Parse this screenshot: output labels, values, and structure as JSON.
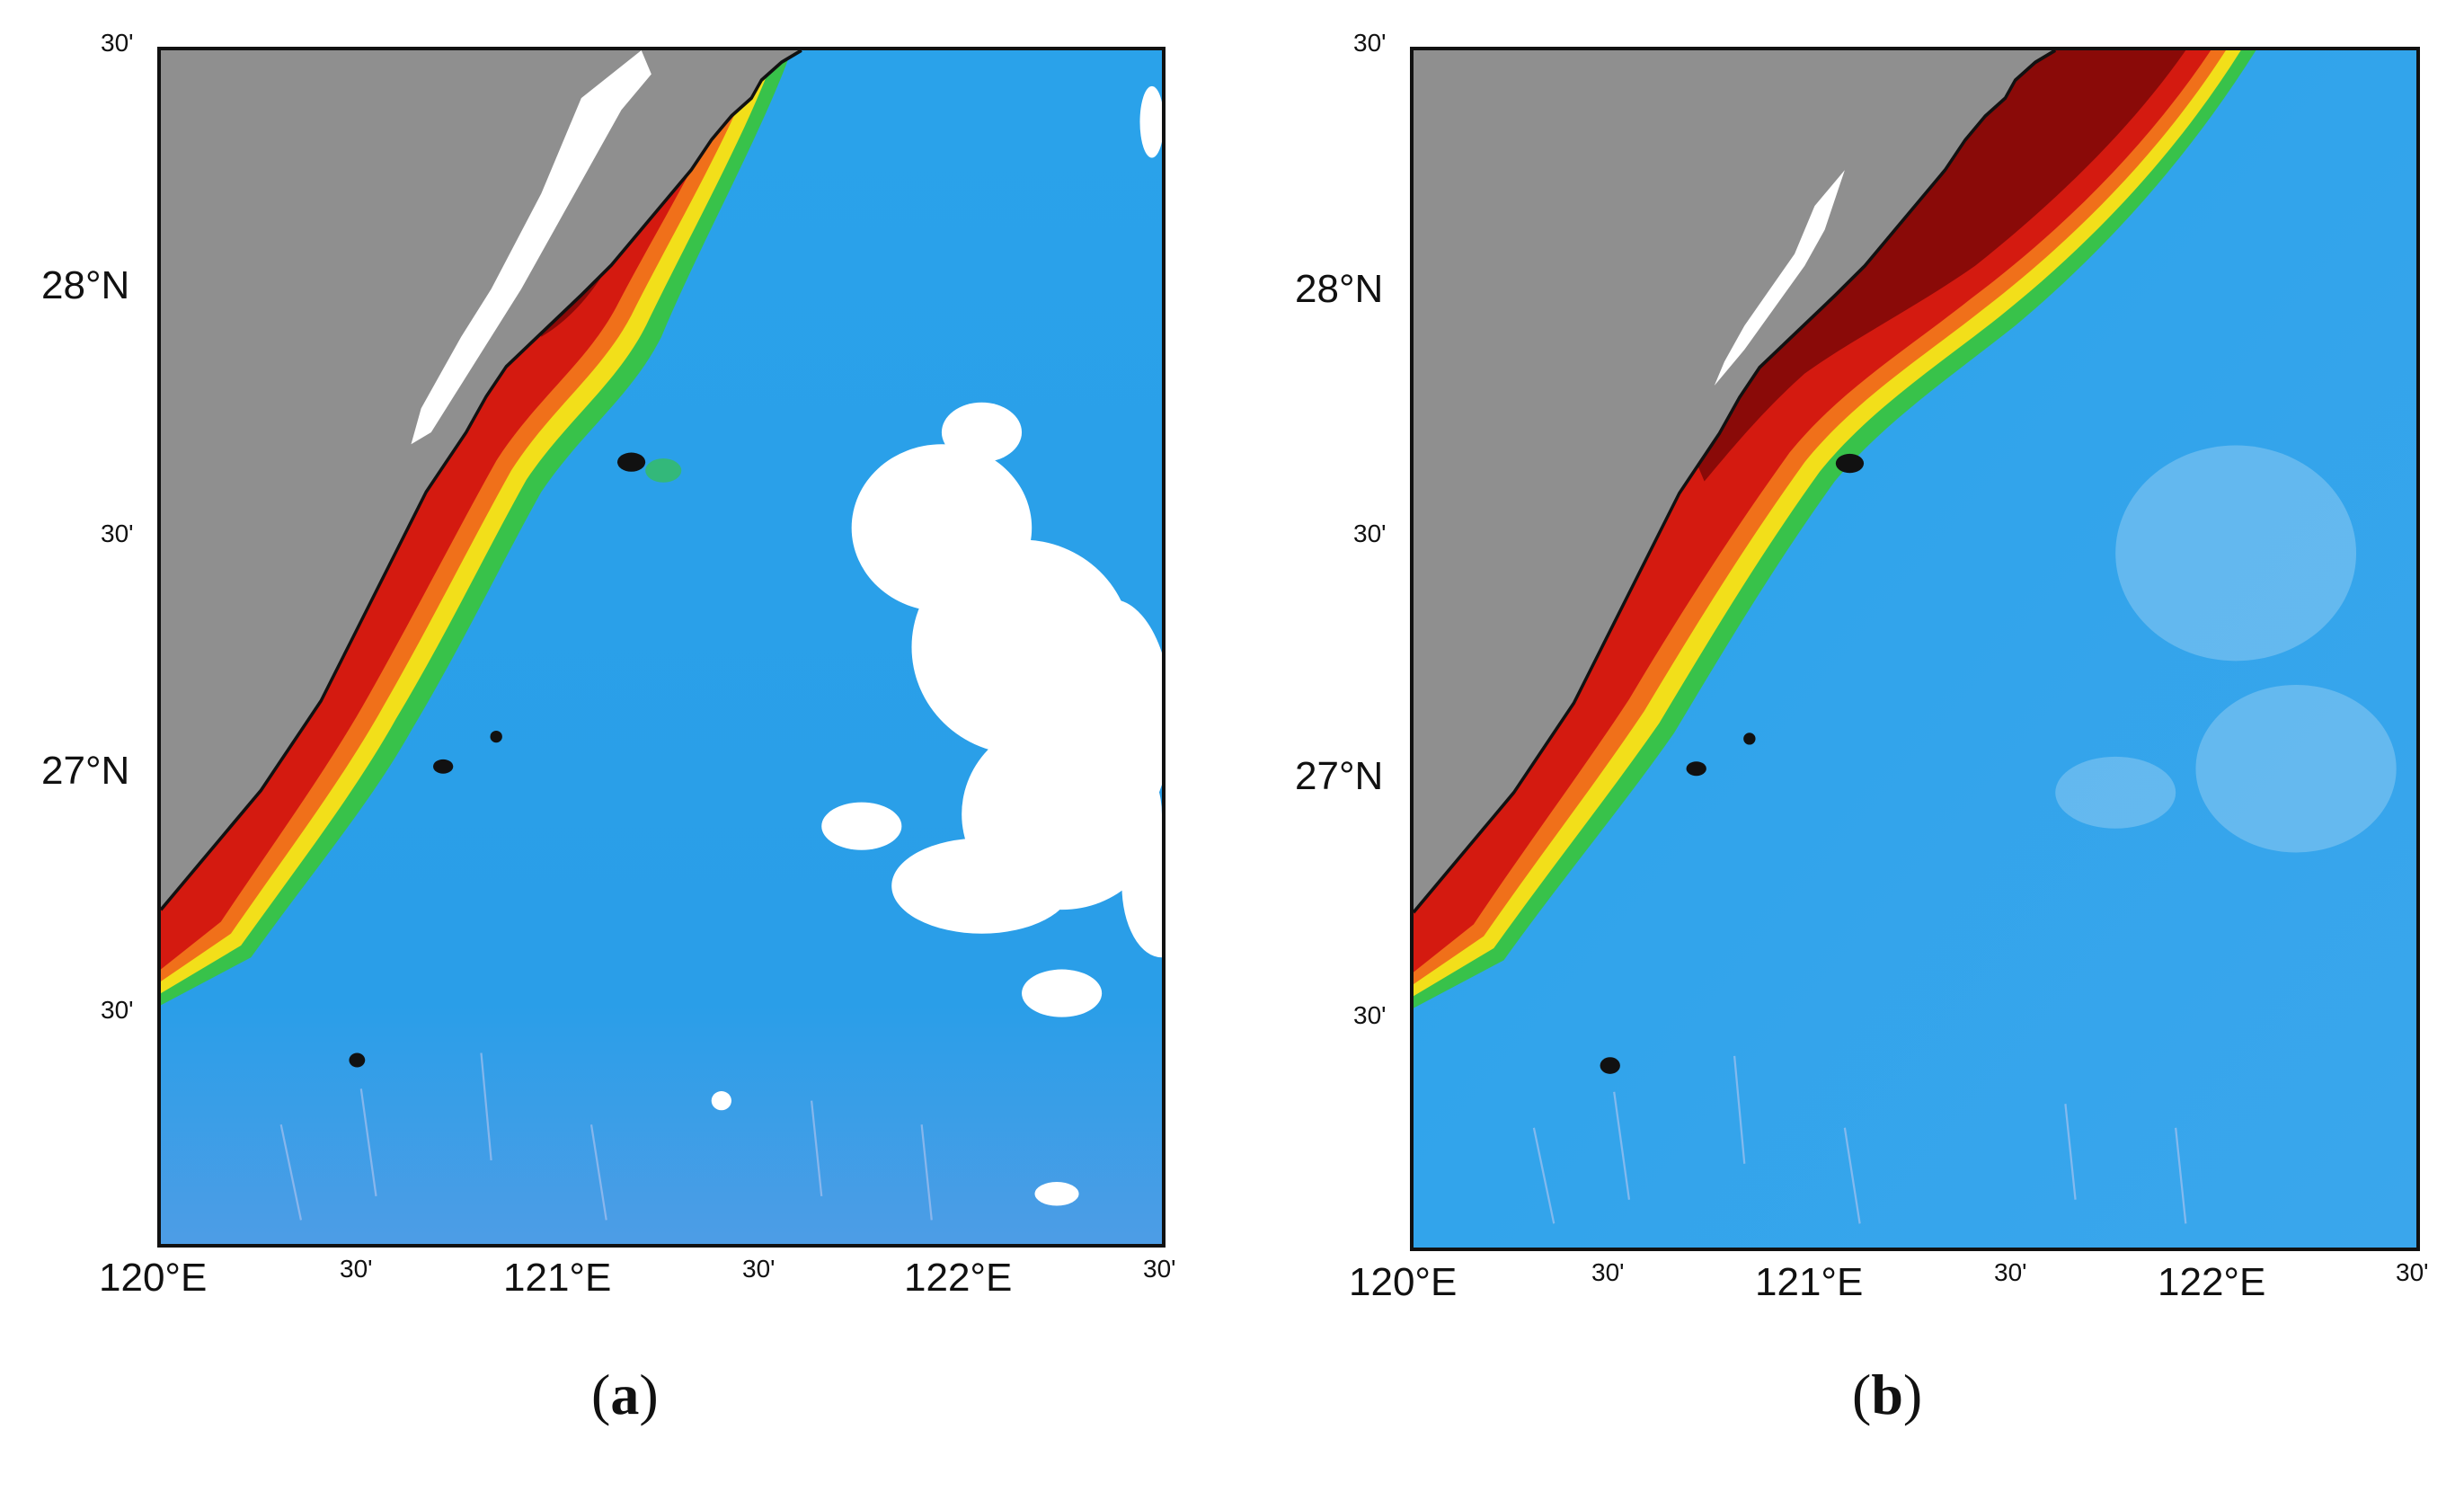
{
  "panels": [
    {
      "caption_open": "(",
      "caption_letter": "a",
      "caption_close": ")",
      "lat_labels": [
        "30'",
        "28°N",
        "30'",
        "27°N",
        "30'"
      ],
      "lon_labels": [
        "120°E",
        "30'",
        "121°E",
        "30'",
        "122°E",
        "30'"
      ],
      "cloud_cover": "heavy"
    },
    {
      "caption_open": "(",
      "caption_letter": "b",
      "caption_close": ")",
      "lat_labels": [
        "30'",
        "28°N",
        "30'",
        "27°N",
        "30'"
      ],
      "lon_labels": [
        "120°E",
        "30'",
        "121°E",
        "30'",
        "122°E",
        "30'"
      ],
      "cloud_cover": "reconstructed"
    }
  ],
  "colors": {
    "land": "#8f8f8f",
    "ocean": "#2a9ee8",
    "ocean_light": "#4bb4ef",
    "green": "#39c44a",
    "yellow": "#f2e01a",
    "orange": "#f2741a",
    "red": "#d81a10",
    "dark_red": "#8c0a08",
    "cloud": "#ffffff",
    "coast": "#111111"
  }
}
